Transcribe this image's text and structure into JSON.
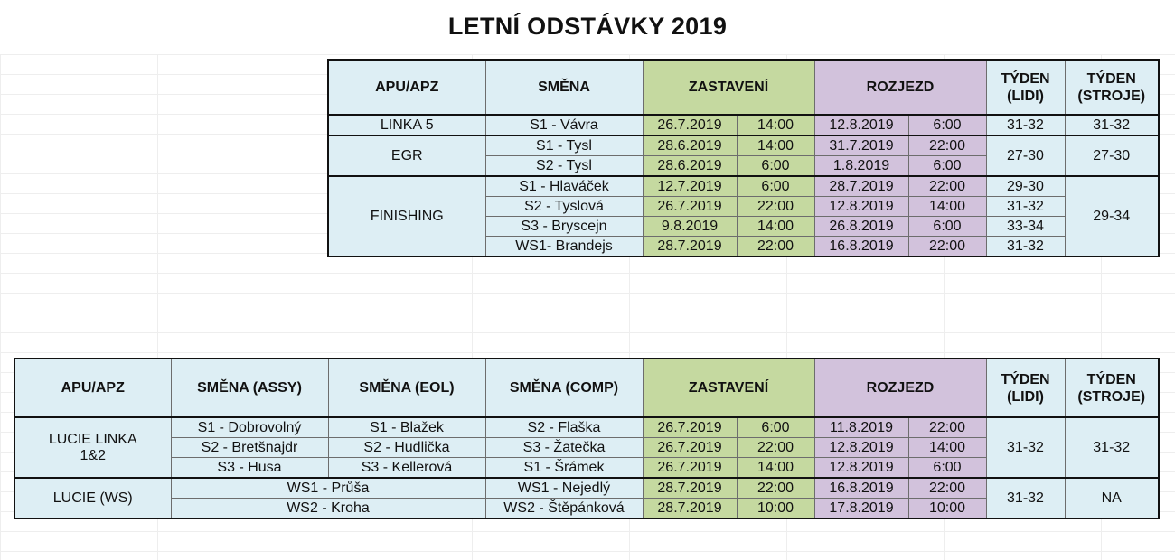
{
  "title": "LETNÍ ODSTÁVKY 2019",
  "table1": {
    "headers": {
      "apu": "APU/APZ",
      "smena": "SMĚNA",
      "zastaveni": "ZASTAVENÍ",
      "rozjezd": "ROZJEZD",
      "tyden_lidi": "TÝDEN (LIDI)",
      "tyden_stroje": "TÝDEN (STROJE)"
    },
    "groups": [
      {
        "apu": "LINKA 5",
        "rows": [
          {
            "smena": "S1 - Vávra",
            "zast_date": "26.7.2019",
            "zast_time": "14:00",
            "roz_date": "12.8.2019",
            "roz_time": "6:00",
            "tyden_lidi": "31-32"
          }
        ],
        "tyden_stroje": "31-32"
      },
      {
        "apu": "EGR",
        "rows": [
          {
            "smena": "S1 - Tysl",
            "zast_date": "28.6.2019",
            "zast_time": "14:00",
            "roz_date": "31.7.2019",
            "roz_time": "22:00"
          },
          {
            "smena": "S2 - Tysl",
            "zast_date": "28.6.2019",
            "zast_time": "6:00",
            "roz_date": "1.8.2019",
            "roz_time": "6:00"
          }
        ],
        "tyden_lidi": "27-30",
        "tyden_stroje": "27-30"
      },
      {
        "apu": "FINISHING",
        "rows": [
          {
            "smena": "S1 - Hlaváček",
            "zast_date": "12.7.2019",
            "zast_time": "6:00",
            "roz_date": "28.7.2019",
            "roz_time": "22:00",
            "tyden_lidi": "29-30"
          },
          {
            "smena": "S2 - Tyslová",
            "zast_date": "26.7.2019",
            "zast_time": "22:00",
            "roz_date": "12.8.2019",
            "roz_time": "14:00",
            "tyden_lidi": "31-32"
          },
          {
            "smena": "S3 - Bryscejn",
            "zast_date": "9.8.2019",
            "zast_time": "14:00",
            "roz_date": "26.8.2019",
            "roz_time": "6:00",
            "tyden_lidi": "33-34"
          },
          {
            "smena": "WS1- Brandejs",
            "zast_date": "28.7.2019",
            "zast_time": "22:00",
            "roz_date": "16.8.2019",
            "roz_time": "22:00",
            "tyden_lidi": "31-32"
          }
        ],
        "tyden_stroje": "29-34"
      }
    ]
  },
  "table2": {
    "headers": {
      "apu": "APU/APZ",
      "smena_assy": "SMĚNA (ASSY)",
      "smena_eol": "SMĚNA (EOL)",
      "smena_comp": "SMĚNA (COMP)",
      "zastaveni": "ZASTAVENÍ",
      "rozjezd": "ROZJEZD",
      "tyden_lidi": "TÝDEN (LIDI)",
      "tyden_stroje": "TÝDEN (STROJE)"
    },
    "groups": [
      {
        "apu": "LUCIE LINKA 1&2",
        "rows": [
          {
            "assy": "S1 - Dobrovolný",
            "eol": "S1 - Blažek",
            "comp": "S2 - Flaška",
            "zast_date": "26.7.2019",
            "zast_time": "6:00",
            "roz_date": "11.8.2019",
            "roz_time": "22:00"
          },
          {
            "assy": "S2 - Bretšnajdr",
            "eol": "S2 - Hudlička",
            "comp": "S3 - Žatečka",
            "zast_date": "26.7.2019",
            "zast_time": "22:00",
            "roz_date": "12.8.2019",
            "roz_time": "14:00"
          },
          {
            "assy": "S3 - Husa",
            "eol": "S3 - Kellerová",
            "comp": "S1 - Šrámek",
            "zast_date": "26.7.2019",
            "zast_time": "14:00",
            "roz_date": "12.8.2019",
            "roz_time": "6:00"
          }
        ],
        "tyden_lidi": "31-32",
        "tyden_stroje": "31-32"
      },
      {
        "apu": "LUCIE (WS)",
        "rows": [
          {
            "assy_eol": "WS1 - Průša",
            "comp": "WS1 - Nejedlý",
            "zast_date": "28.7.2019",
            "zast_time": "22:00",
            "roz_date": "16.8.2019",
            "roz_time": "22:00"
          },
          {
            "assy_eol": "WS2 - Kroha",
            "comp": "WS2 - Štěpánková",
            "zast_date": "28.7.2019",
            "zast_time": "10:00",
            "roz_date": "17.8.2019",
            "roz_time": "10:00"
          }
        ],
        "tyden_lidi": "31-32",
        "tyden_stroje": "NA"
      }
    ]
  }
}
